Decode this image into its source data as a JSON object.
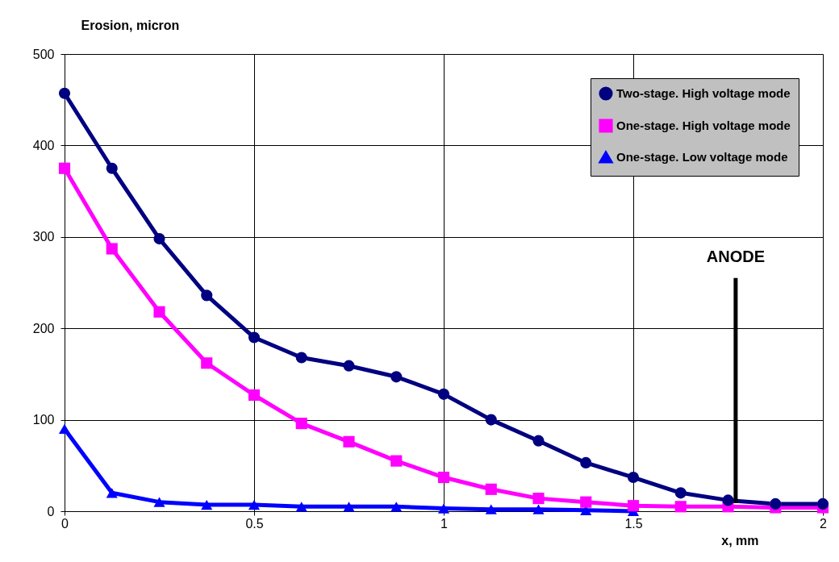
{
  "chart_data": {
    "type": "line",
    "ylabel": "Erosion, micron",
    "xlabel": "x, mm",
    "xlim": [
      0,
      2
    ],
    "xticks": [
      0,
      0.5,
      1,
      1.5,
      2
    ],
    "ylim": [
      0,
      500
    ],
    "yticks": [
      0,
      100,
      200,
      300,
      400,
      500
    ],
    "grid": true,
    "legend": "top right",
    "line_style": "solid",
    "series": [
      {
        "name": "Two-stage. High voltage mode",
        "color": "#000080",
        "marker": "circle",
        "x": [
          0,
          0.125,
          0.25,
          0.375,
          0.5,
          0.625,
          0.75,
          0.875,
          1,
          1.125,
          1.25,
          1.375,
          1.5,
          1.625,
          1.75,
          1.875,
          2
        ],
        "values": [
          457,
          375,
          298,
          236,
          190,
          168,
          159,
          147,
          128,
          100,
          77,
          53,
          37,
          20,
          12,
          8,
          8
        ]
      },
      {
        "name": "One-stage. High voltage mode",
        "color": "#ff00ff",
        "marker": "square",
        "x": [
          0,
          0.125,
          0.25,
          0.375,
          0.5,
          0.625,
          0.75,
          0.875,
          1,
          1.125,
          1.25,
          1.375,
          1.5,
          1.625,
          1.75,
          1.875,
          2
        ],
        "values": [
          375,
          287,
          218,
          162,
          127,
          96,
          76,
          55,
          37,
          24,
          14,
          10,
          6,
          5,
          5,
          4,
          4
        ]
      },
      {
        "name": "One-stage. Low voltage mode",
        "color": "#0000ff",
        "marker": "triangle",
        "x": [
          0,
          0.125,
          0.25,
          0.375,
          0.5,
          0.625,
          0.75,
          0.875,
          1,
          1.125,
          1.25,
          1.375,
          1.5
        ],
        "values": [
          90,
          20,
          10,
          7,
          7,
          5,
          5,
          5,
          3,
          2,
          2,
          1,
          0
        ]
      }
    ],
    "ref_lines": [
      {
        "axis": "x",
        "value": 1.77,
        "label": "ANODE",
        "color": "#000000"
      }
    ]
  }
}
